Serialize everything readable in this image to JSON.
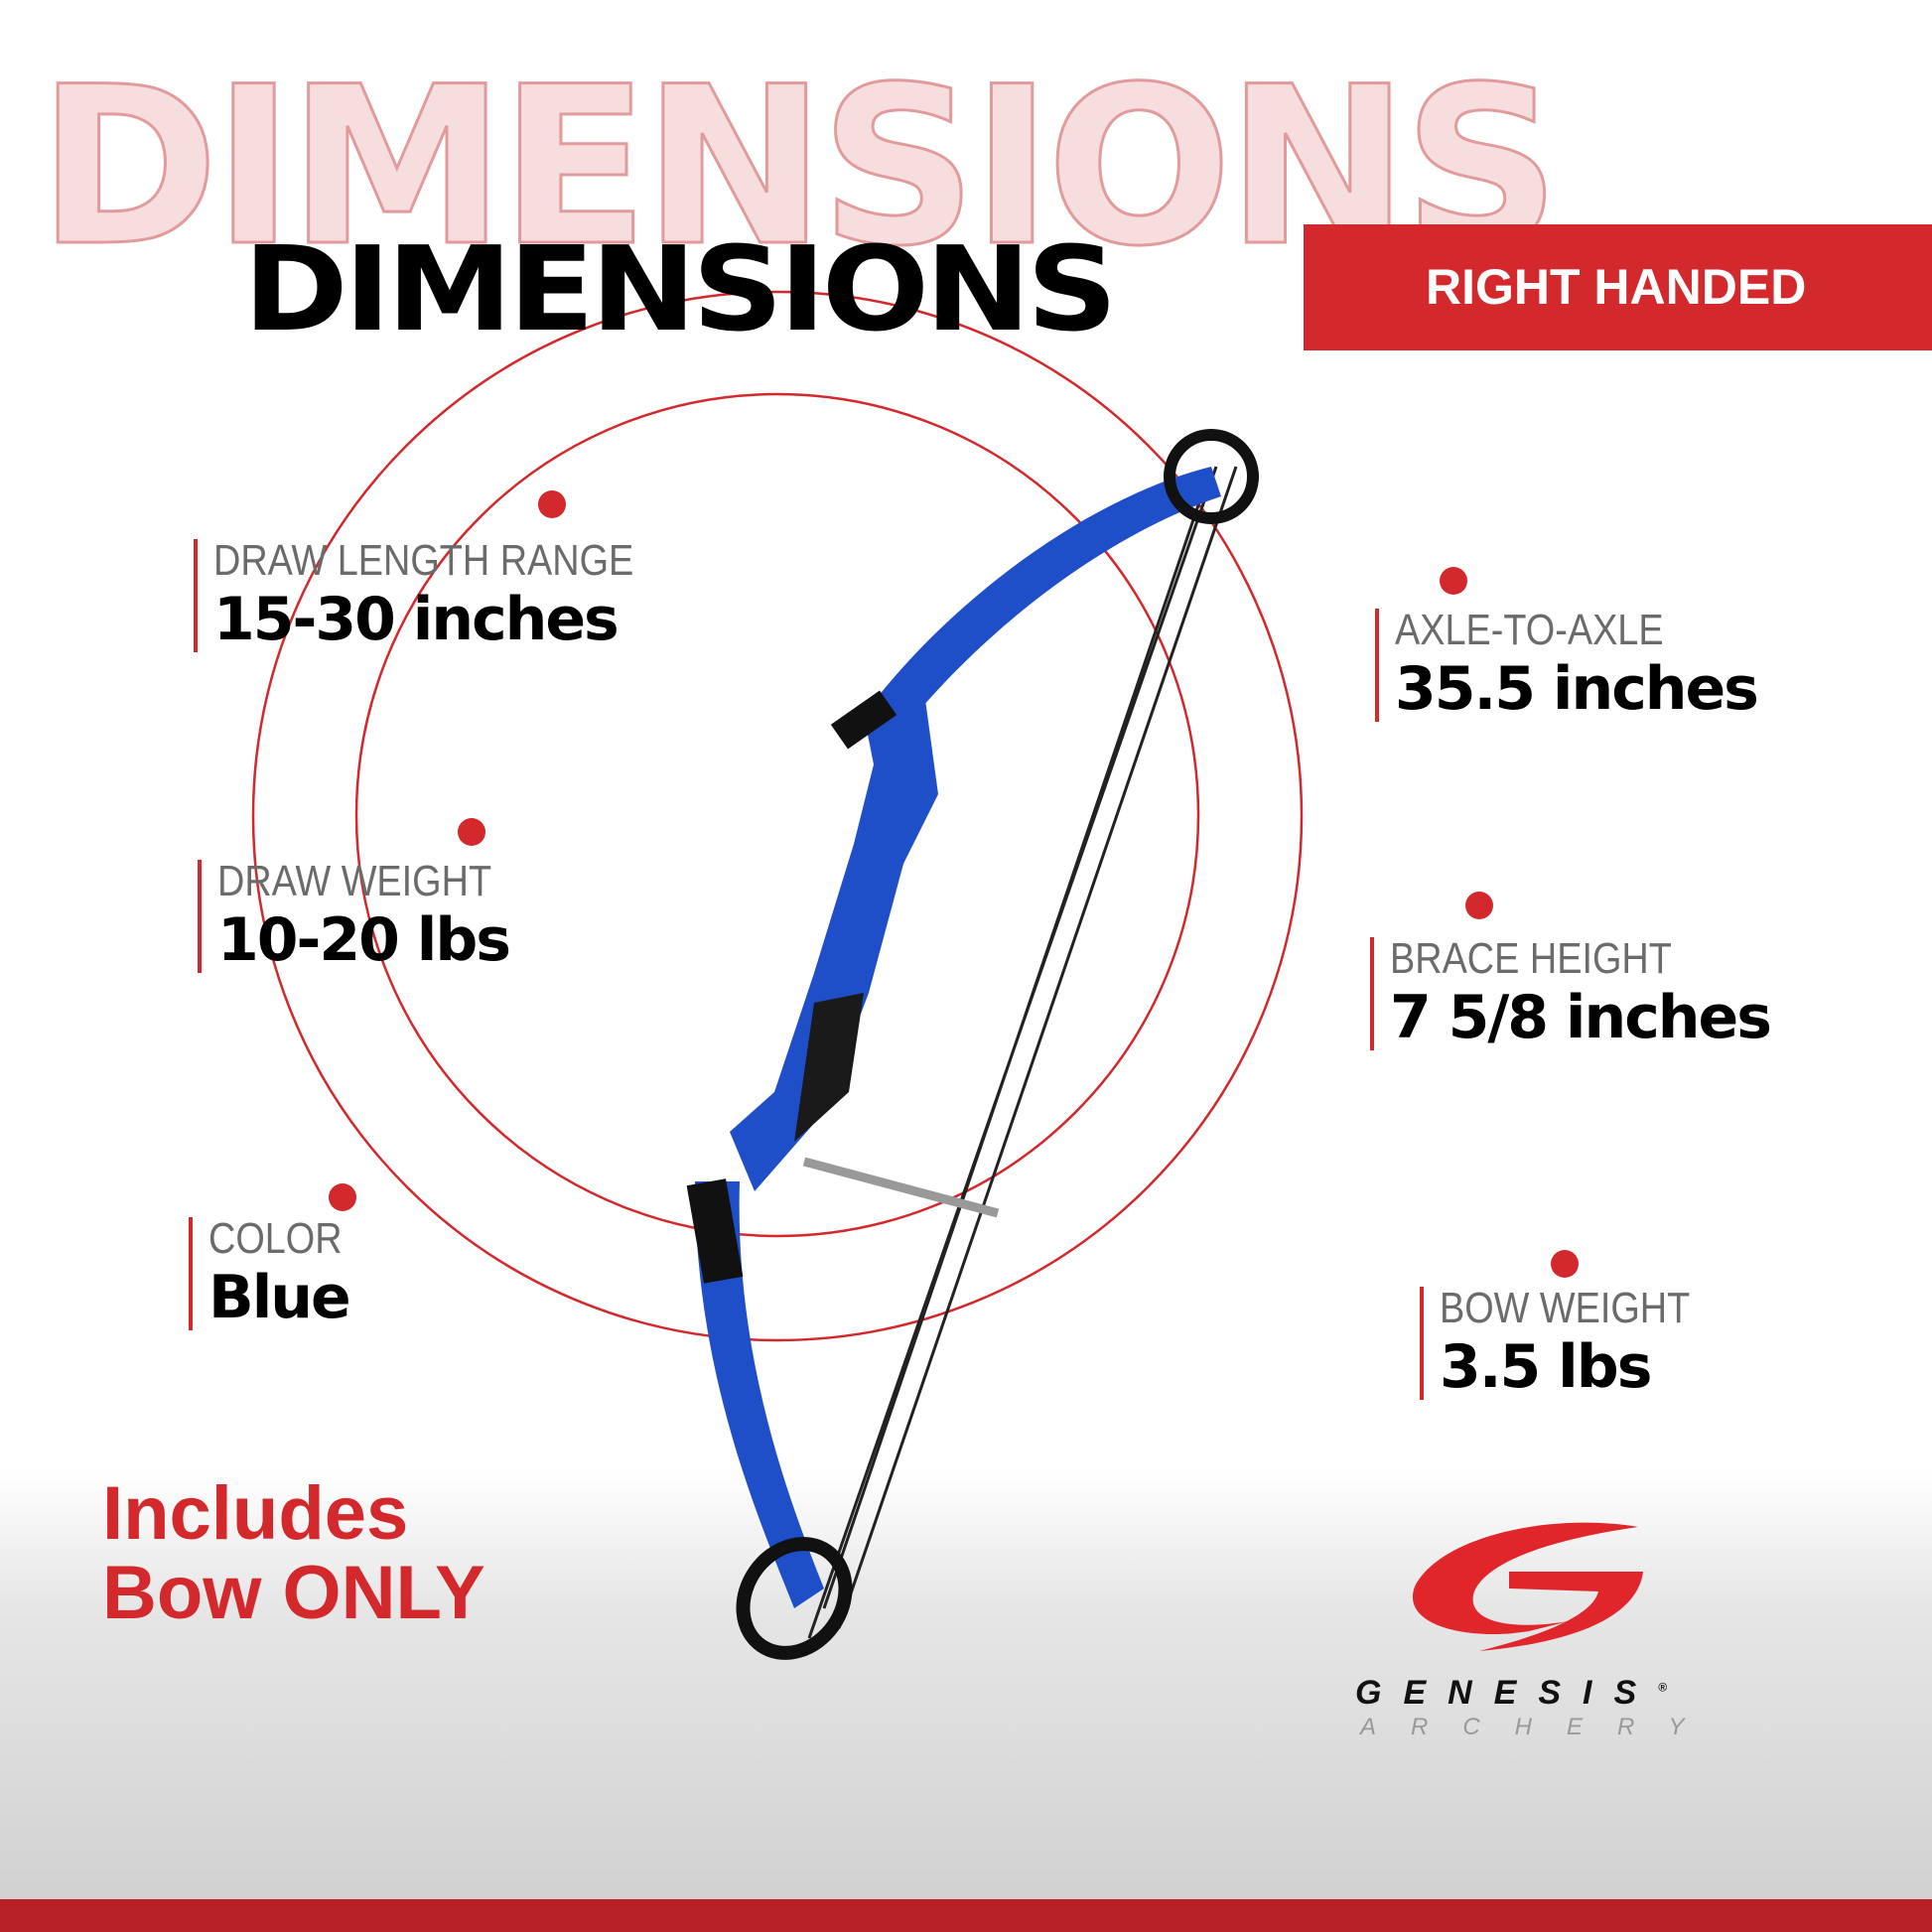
{
  "header": {
    "background_word": "DIMENSIONS",
    "title": "DIMENSIONS",
    "badge": "RIGHT HANDED"
  },
  "specs": [
    {
      "label": "DRAW LENGTH RANGE",
      "value": "15-30 inches"
    },
    {
      "label": "DRAW WEIGHT",
      "value": "10-20 lbs"
    },
    {
      "label": "COLOR",
      "value": "Blue"
    },
    {
      "label": "AXLE-TO-AXLE",
      "value": "35.5 inches"
    },
    {
      "label": "BRACE HEIGHT",
      "value": "7 5/8 inches"
    },
    {
      "label": "BOW WEIGHT",
      "value": "3.5 lbs"
    }
  ],
  "note": {
    "line1": "Includes",
    "line2": "Bow ONLY"
  },
  "brand": {
    "name": "GENESIS",
    "sub": "ARCHERY",
    "registered": "®"
  },
  "colors": {
    "accent": "#d3282c",
    "bow": "#1f4fc8"
  }
}
